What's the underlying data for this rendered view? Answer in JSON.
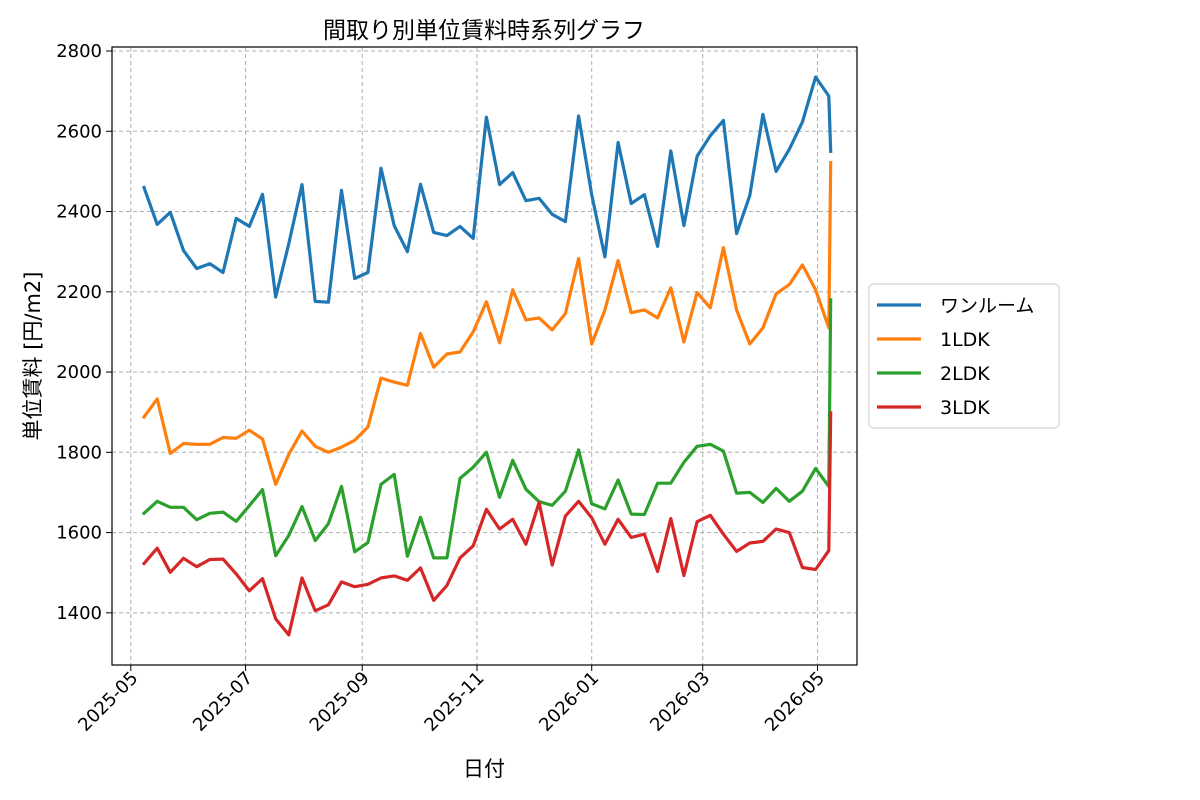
{
  "chart_data": {
    "type": "line",
    "title": "間取り別単位賃料時系列グラフ",
    "xlabel": "日付",
    "ylabel": "単位賃料 [円/m2]",
    "xlim": [
      "2025-04-21",
      "2026-05-22"
    ],
    "ylim": [
      1270,
      2810
    ],
    "yticks": [
      1400,
      1600,
      1800,
      2000,
      2200,
      2400,
      2600,
      2800
    ],
    "xticks": [
      "2025-05",
      "2025-07",
      "2025-09",
      "2025-11",
      "2026-01",
      "2026-03",
      "2026-05"
    ],
    "grid": true,
    "legend_position": "right-outside",
    "x": [
      "2025-05-08",
      "2025-05-15",
      "2025-05-22",
      "2025-05-29",
      "2025-06-05",
      "2025-06-12",
      "2025-06-19",
      "2025-06-26",
      "2025-07-03",
      "2025-07-10",
      "2025-07-17",
      "2025-07-24",
      "2025-07-31",
      "2025-08-07",
      "2025-08-14",
      "2025-08-21",
      "2025-08-28",
      "2025-09-04",
      "2025-09-11",
      "2025-09-18",
      "2025-09-25",
      "2025-10-02",
      "2025-10-09",
      "2025-10-16",
      "2025-10-23",
      "2025-10-30",
      "2025-11-06",
      "2025-11-13",
      "2025-11-20",
      "2025-11-27",
      "2025-12-04",
      "2025-12-11",
      "2025-12-18",
      "2025-12-25",
      "2026-01-01",
      "2026-01-08",
      "2026-01-15",
      "2026-01-22",
      "2026-01-29",
      "2026-02-05",
      "2026-02-12",
      "2026-02-19",
      "2026-02-26",
      "2026-03-05",
      "2026-03-12",
      "2026-03-19",
      "2026-03-26",
      "2026-04-02",
      "2026-04-09",
      "2026-04-16",
      "2026-04-23",
      "2026-04-30",
      "2026-05-07",
      "2026-05-08"
    ],
    "series": [
      {
        "name": "ワンルーム",
        "color": "#1f77b4",
        "values": [
          2460,
          2368,
          2398,
          2303,
          2258,
          2270,
          2248,
          2383,
          2363,
          2443,
          2187,
          2320,
          2467,
          2176,
          2174,
          2453,
          2233,
          2248,
          2508,
          2365,
          2300,
          2468,
          2348,
          2340,
          2363,
          2333,
          2635,
          2467,
          2497,
          2427,
          2433,
          2393,
          2375,
          2638,
          2442,
          2287,
          2572,
          2420,
          2442,
          2313,
          2551,
          2365,
          2538,
          2589,
          2627,
          2345,
          2440,
          2642,
          2500,
          2555,
          2623,
          2735,
          2688,
          2550
        ]
      },
      {
        "name": "1LDK",
        "color": "#ff7f0e",
        "values": [
          1888,
          1933,
          1797,
          1822,
          1820,
          1820,
          1837,
          1835,
          1855,
          1833,
          1720,
          1795,
          1853,
          1815,
          1800,
          1813,
          1830,
          1863,
          1985,
          1975,
          1967,
          2096,
          2012,
          2045,
          2050,
          2100,
          2175,
          2073,
          2205,
          2130,
          2135,
          2105,
          2146,
          2283,
          2070,
          2155,
          2278,
          2148,
          2155,
          2135,
          2210,
          2075,
          2198,
          2160,
          2310,
          2155,
          2070,
          2110,
          2195,
          2218,
          2267,
          2205,
          2110,
          2522
        ]
      },
      {
        "name": "2LDK",
        "color": "#2ca02c",
        "values": [
          1648,
          1678,
          1663,
          1663,
          1632,
          1648,
          1651,
          1628,
          1667,
          1707,
          1542,
          1593,
          1665,
          1580,
          1622,
          1715,
          1552,
          1575,
          1720,
          1745,
          1541,
          1638,
          1537,
          1537,
          1735,
          1763,
          1800,
          1688,
          1780,
          1708,
          1677,
          1668,
          1703,
          1806,
          1672,
          1659,
          1731,
          1646,
          1645,
          1723,
          1723,
          1775,
          1815,
          1820,
          1803,
          1698,
          1700,
          1675,
          1710,
          1678,
          1703,
          1760,
          1715,
          2180
        ]
      },
      {
        "name": "3LDK",
        "color": "#d62728",
        "values": [
          1523,
          1561,
          1501,
          1536,
          1515,
          1533,
          1534,
          1497,
          1455,
          1485,
          1385,
          1345,
          1487,
          1405,
          1420,
          1477,
          1465,
          1471,
          1487,
          1492,
          1481,
          1512,
          1431,
          1468,
          1537,
          1567,
          1658,
          1609,
          1633,
          1571,
          1675,
          1519,
          1641,
          1678,
          1637,
          1571,
          1633,
          1588,
          1596,
          1503,
          1635,
          1493,
          1627,
          1643,
          1596,
          1553,
          1574,
          1578,
          1609,
          1600,
          1513,
          1508,
          1555,
          1898
        ]
      }
    ]
  }
}
